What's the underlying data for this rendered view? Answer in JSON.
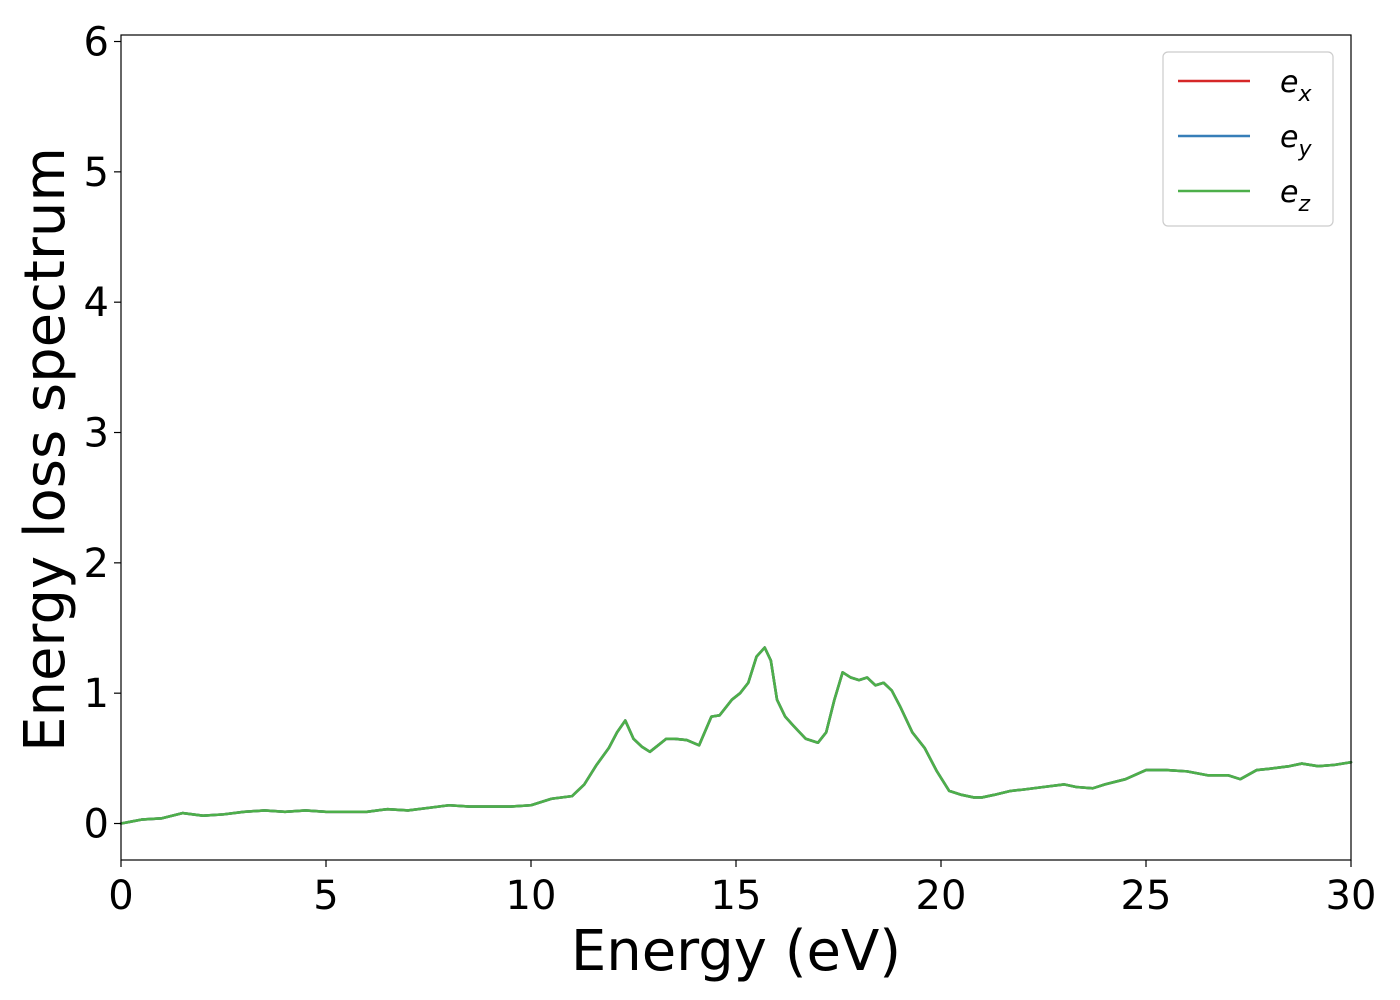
{
  "chart_data": {
    "type": "line",
    "xlabel": "Energy (eV)",
    "ylabel": "Energy loss spectrum",
    "xlim": [
      0,
      30
    ],
    "ylim": [
      -0.28,
      6.05
    ],
    "xticks": [
      0,
      5,
      10,
      15,
      20,
      25,
      30
    ],
    "yticks": [
      0,
      1,
      2,
      3,
      4,
      5,
      6
    ],
    "grid": false,
    "legend_position": "top-right",
    "x": [
      0,
      0.5,
      1.0,
      1.5,
      2.0,
      2.5,
      3.0,
      3.5,
      4.0,
      4.5,
      5.0,
      5.5,
      6.0,
      6.5,
      7.0,
      7.5,
      8.0,
      8.5,
      9.0,
      9.5,
      10.0,
      10.5,
      11.0,
      11.3,
      11.6,
      11.9,
      12.1,
      12.3,
      12.5,
      12.7,
      12.9,
      13.1,
      13.3,
      13.5,
      13.8,
      14.1,
      14.4,
      14.6,
      14.9,
      15.1,
      15.3,
      15.5,
      15.7,
      15.85,
      16.0,
      16.2,
      16.4,
      16.7,
      17.0,
      17.2,
      17.4,
      17.6,
      17.8,
      18.0,
      18.2,
      18.4,
      18.6,
      18.8,
      19.0,
      19.3,
      19.6,
      19.9,
      20.2,
      20.5,
      20.8,
      21.0,
      21.3,
      21.7,
      22.0,
      22.5,
      23.0,
      23.3,
      23.7,
      24.0,
      24.5,
      25.0,
      25.5,
      26.0,
      26.5,
      27.0,
      27.3,
      27.7,
      28.0,
      28.5,
      28.8,
      29.2,
      29.6,
      30.0
    ],
    "series": [
      {
        "name": "e_x",
        "color": "#d62728",
        "values": [
          0.0,
          0.03,
          0.04,
          0.08,
          0.06,
          0.07,
          0.09,
          0.1,
          0.09,
          0.1,
          0.09,
          0.09,
          0.09,
          0.11,
          0.1,
          0.12,
          0.14,
          0.13,
          0.13,
          0.13,
          0.14,
          0.19,
          0.21,
          0.3,
          0.45,
          0.58,
          0.7,
          0.79,
          0.65,
          0.59,
          0.55,
          0.6,
          0.65,
          0.65,
          0.64,
          0.6,
          0.82,
          0.83,
          0.95,
          1.0,
          1.08,
          1.28,
          1.35,
          1.25,
          0.95,
          0.82,
          0.75,
          0.65,
          0.62,
          0.7,
          0.95,
          1.16,
          1.12,
          1.1,
          1.12,
          1.06,
          1.08,
          1.02,
          0.9,
          0.7,
          0.58,
          0.4,
          0.25,
          0.22,
          0.2,
          0.2,
          0.22,
          0.25,
          0.26,
          0.28,
          0.3,
          0.28,
          0.27,
          0.3,
          0.34,
          0.41,
          0.41,
          0.4,
          0.37,
          0.37,
          0.34,
          0.41,
          0.42,
          0.44,
          0.46,
          0.44,
          0.45,
          0.47
        ]
      },
      {
        "name": "e_y",
        "color": "#377eb8",
        "values": [
          0.0,
          0.03,
          0.04,
          0.08,
          0.06,
          0.07,
          0.09,
          0.1,
          0.09,
          0.1,
          0.09,
          0.09,
          0.09,
          0.11,
          0.1,
          0.12,
          0.14,
          0.13,
          0.13,
          0.13,
          0.14,
          0.19,
          0.21,
          0.3,
          0.45,
          0.58,
          0.7,
          0.79,
          0.65,
          0.59,
          0.55,
          0.6,
          0.65,
          0.65,
          0.64,
          0.6,
          0.82,
          0.83,
          0.95,
          1.0,
          1.08,
          1.28,
          1.35,
          1.25,
          0.95,
          0.82,
          0.75,
          0.65,
          0.62,
          0.7,
          0.95,
          1.16,
          1.12,
          1.1,
          1.12,
          1.06,
          1.08,
          1.02,
          0.9,
          0.7,
          0.58,
          0.4,
          0.25,
          0.22,
          0.2,
          0.2,
          0.22,
          0.25,
          0.26,
          0.28,
          0.3,
          0.28,
          0.27,
          0.3,
          0.34,
          0.41,
          0.41,
          0.4,
          0.37,
          0.37,
          0.34,
          0.41,
          0.42,
          0.44,
          0.46,
          0.44,
          0.45,
          0.47
        ]
      },
      {
        "name": "e_z",
        "color": "#4daf4a",
        "values": [
          0.0,
          0.03,
          0.04,
          0.08,
          0.06,
          0.07,
          0.09,
          0.1,
          0.09,
          0.1,
          0.09,
          0.09,
          0.09,
          0.11,
          0.1,
          0.12,
          0.14,
          0.13,
          0.13,
          0.13,
          0.14,
          0.19,
          0.21,
          0.3,
          0.45,
          0.58,
          0.7,
          0.79,
          0.65,
          0.59,
          0.55,
          0.6,
          0.65,
          0.65,
          0.64,
          0.6,
          0.82,
          0.83,
          0.95,
          1.0,
          1.08,
          1.28,
          1.35,
          1.25,
          0.95,
          0.82,
          0.75,
          0.65,
          0.62,
          0.7,
          0.95,
          1.16,
          1.12,
          1.1,
          1.12,
          1.06,
          1.08,
          1.02,
          0.9,
          0.7,
          0.58,
          0.4,
          0.25,
          0.22,
          0.2,
          0.2,
          0.22,
          0.25,
          0.26,
          0.28,
          0.3,
          0.28,
          0.27,
          0.3,
          0.34,
          0.41,
          0.41,
          0.4,
          0.37,
          0.37,
          0.34,
          0.41,
          0.42,
          0.44,
          0.46,
          0.44,
          0.45,
          0.47
        ]
      }
    ],
    "legend": [
      {
        "base": "e",
        "sub": "x",
        "color": "#d62728"
      },
      {
        "base": "e",
        "sub": "y",
        "color": "#377eb8"
      },
      {
        "base": "e",
        "sub": "z",
        "color": "#4daf4a"
      }
    ]
  }
}
